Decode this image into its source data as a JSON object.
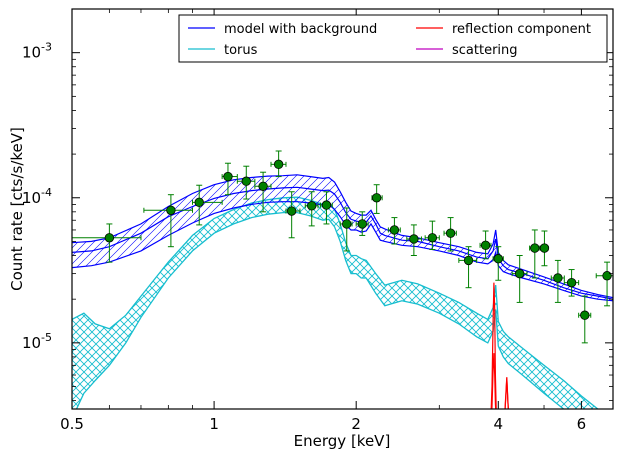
{
  "chart_data": {
    "type": "line",
    "xlabel": "Energy [keV]",
    "ylabel": "Count rate [cts/s/keV]",
    "xscale": "log",
    "yscale": "log",
    "xlim": [
      0.5,
      7.0
    ],
    "ylim": [
      3.5e-06,
      0.002
    ],
    "grid": false,
    "legend_position": "top-right",
    "x_ticks": [
      {
        "value": 0.5,
        "label": "0.5"
      },
      {
        "value": 1,
        "label": "1"
      },
      {
        "value": 2,
        "label": "2"
      },
      {
        "value": 4,
        "label": "4"
      },
      {
        "value": 6,
        "label": "6"
      }
    ],
    "y_ticks": [
      {
        "value": 1e-05,
        "base": "10",
        "exp": "-5"
      },
      {
        "value": 0.0001,
        "base": "10",
        "exp": "-4"
      },
      {
        "value": 0.001,
        "base": "10",
        "exp": "-3"
      }
    ],
    "legend": [
      {
        "label": "model with background",
        "color": "#0000ff"
      },
      {
        "label": "torus",
        "color": "#17becf"
      },
      {
        "label": "reflection component",
        "color": "#ff0000"
      },
      {
        "label": "scattering",
        "color": "#bf00bf"
      }
    ],
    "data_points": [
      {
        "x": 0.6,
        "y": 5.3e-05,
        "xlo": 0.5,
        "xhi": 0.7,
        "ylo": 3.6e-05,
        "yhi": 6.6e-05
      },
      {
        "x": 0.81,
        "y": 8.2e-05,
        "xlo": 0.71,
        "xhi": 0.9,
        "ylo": 4.6e-05,
        "yhi": 0.000105
      },
      {
        "x": 0.93,
        "y": 9.3e-05,
        "xlo": 0.9,
        "xhi": 1.04,
        "ylo": 6.5e-05,
        "yhi": 0.000122
      },
      {
        "x": 1.07,
        "y": 0.00014,
        "xlo": 1.04,
        "xhi": 1.12,
        "ylo": 0.000105,
        "yhi": 0.000173
      },
      {
        "x": 1.17,
        "y": 0.00013,
        "xlo": 1.12,
        "xhi": 1.22,
        "ylo": 9.8e-05,
        "yhi": 0.000165
      },
      {
        "x": 1.27,
        "y": 0.00012,
        "xlo": 1.22,
        "xhi": 1.32,
        "ylo": 8e-05,
        "yhi": 0.00015
      },
      {
        "x": 1.37,
        "y": 0.00017,
        "xlo": 1.32,
        "xhi": 1.42,
        "ylo": 0.00014,
        "yhi": 0.00021
      },
      {
        "x": 1.46,
        "y": 8.1e-05,
        "xlo": 1.42,
        "xhi": 1.52,
        "ylo": 5.3e-05,
        "yhi": 0.00011
      },
      {
        "x": 1.61,
        "y": 8.8e-05,
        "xlo": 1.56,
        "xhi": 1.66,
        "ylo": 6.4e-05,
        "yhi": 0.00011
      },
      {
        "x": 1.73,
        "y": 8.9e-05,
        "xlo": 1.68,
        "xhi": 1.78,
        "ylo": 6.6e-05,
        "yhi": 0.00011
      },
      {
        "x": 1.91,
        "y": 6.6e-05,
        "xlo": 1.85,
        "xhi": 1.96,
        "ylo": 4.3e-05,
        "yhi": 8.5e-05
      },
      {
        "x": 2.06,
        "y": 6.6e-05,
        "xlo": 2.0,
        "xhi": 2.12,
        "ylo": 5.5e-05,
        "yhi": 8e-05
      },
      {
        "x": 2.21,
        "y": 0.0001,
        "xlo": 2.16,
        "xhi": 2.27,
        "ylo": 7.8e-05,
        "yhi": 0.000123
      },
      {
        "x": 2.41,
        "y": 6e-05,
        "xlo": 2.34,
        "xhi": 2.48,
        "ylo": 4.8e-05,
        "yhi": 7.3e-05
      },
      {
        "x": 2.65,
        "y": 5.2e-05,
        "xlo": 2.56,
        "xhi": 2.75,
        "ylo": 4e-05,
        "yhi": 6.5e-05
      },
      {
        "x": 2.9,
        "y": 5.3e-05,
        "xlo": 2.8,
        "xhi": 3.0,
        "ylo": 4.4e-05,
        "yhi": 6.9e-05
      },
      {
        "x": 3.17,
        "y": 5.7e-05,
        "xlo": 3.07,
        "xhi": 3.26,
        "ylo": 4.3e-05,
        "yhi": 7.3e-05
      },
      {
        "x": 3.46,
        "y": 3.7e-05,
        "xlo": 3.3,
        "xhi": 3.6,
        "ylo": 2.4e-05,
        "yhi": 4.6e-05
      },
      {
        "x": 3.76,
        "y": 4.7e-05,
        "xlo": 3.66,
        "xhi": 3.86,
        "ylo": 3.8e-05,
        "yhi": 5.9e-05
      },
      {
        "x": 4.0,
        "y": 3.8e-05,
        "xlo": 3.9,
        "xhi": 4.1,
        "ylo": 2.7e-05,
        "yhi": 4.6e-05
      },
      {
        "x": 4.44,
        "y": 3e-05,
        "xlo": 4.28,
        "xhi": 4.6,
        "ylo": 1.9e-05,
        "yhi": 4e-05
      },
      {
        "x": 4.78,
        "y": 4.5e-05,
        "xlo": 4.66,
        "xhi": 4.9,
        "ylo": 2.8e-05,
        "yhi": 6e-05
      },
      {
        "x": 5.01,
        "y": 4.5e-05,
        "xlo": 4.92,
        "xhi": 5.1,
        "ylo": 3.4e-05,
        "yhi": 5.9e-05
      },
      {
        "x": 5.35,
        "y": 2.8e-05,
        "xlo": 5.18,
        "xhi": 5.52,
        "ylo": 1.9e-05,
        "yhi": 3.7e-05
      },
      {
        "x": 5.72,
        "y": 2.6e-05,
        "xlo": 5.52,
        "xhi": 5.92,
        "ylo": 2.1e-05,
        "yhi": 3.2e-05
      },
      {
        "x": 6.1,
        "y": 1.55e-05,
        "xlo": 5.92,
        "xhi": 6.28,
        "ylo": 1e-05,
        "yhi": 2.1e-05
      },
      {
        "x": 6.8,
        "y": 2.9e-05,
        "xlo": 6.45,
        "xhi": 7.0,
        "ylo": 1.8e-05,
        "yhi": 3.6e-05
      }
    ],
    "series": [
      {
        "name": "model with background",
        "color": "#0000ff",
        "x": [
          0.5,
          0.55,
          0.6,
          0.7,
          0.8,
          0.9,
          1.0,
          1.1,
          1.2,
          1.3,
          1.4,
          1.5,
          1.6,
          1.7,
          1.75,
          1.8,
          1.85,
          1.9,
          1.95,
          2.0,
          2.05,
          2.1,
          2.15,
          2.2,
          2.25,
          2.3,
          2.5,
          2.7,
          3.0,
          3.3,
          3.6,
          3.8,
          3.9,
          3.95,
          4.0,
          4.1,
          4.2,
          4.5,
          5.0,
          5.5,
          6.0,
          6.5,
          7.0
        ],
        "low": [
          3.3e-05,
          3.4e-05,
          3.6e-05,
          4.3e-05,
          5.5e-05,
          6.7e-05,
          7.8e-05,
          8.5e-05,
          9e-05,
          9.3e-05,
          9.4e-05,
          9.4e-05,
          9.2e-05,
          8.9e-05,
          9e-05,
          8.3e-05,
          7.4e-05,
          6.5e-05,
          6e-05,
          6e-05,
          5.8e-05,
          5.9e-05,
          6.6e-05,
          5.8e-05,
          5.1e-05,
          5e-05,
          4.7e-05,
          4.6e-05,
          4.3e-05,
          4e-05,
          3.6e-05,
          3.5e-05,
          3.7e-05,
          4.2e-05,
          3.4e-05,
          3.1e-05,
          3e-05,
          2.8e-05,
          2.55e-05,
          2.3e-05,
          2.1e-05,
          2e-05,
          1.95e-05
        ],
        "mid": [
          4.2e-05,
          4.3e-05,
          4.6e-05,
          5.7e-05,
          7.4e-05,
          8.7e-05,
          9.9e-05,
          0.000107,
          0.000112,
          0.000115,
          0.000117,
          0.000118,
          0.000115,
          0.000112,
          0.000113,
          0.000106,
          9.3e-05,
          7.9e-05,
          7.1e-05,
          6.9e-05,
          6.8e-05,
          6.8e-05,
          7.5e-05,
          6.6e-05,
          5.7e-05,
          5.5e-05,
          5.1e-05,
          5e-05,
          4.6e-05,
          4.3e-05,
          3.9e-05,
          3.8e-05,
          4.3e-05,
          5.2e-05,
          3.8e-05,
          3.4e-05,
          3.2e-05,
          3e-05,
          2.7e-05,
          2.4e-05,
          2.2e-05,
          2.1e-05,
          2e-05
        ],
        "high": [
          4.9e-05,
          5e-05,
          5.3e-05,
          6.6e-05,
          8.7e-05,
          0.000107,
          0.000123,
          0.000133,
          0.000138,
          0.000141,
          0.000142,
          0.000144,
          0.00014,
          0.000136,
          0.000138,
          0.000128,
          0.00011,
          9.3e-05,
          8.1e-05,
          7.8e-05,
          7.6e-05,
          7.6e-05,
          8.2e-05,
          7.1e-05,
          6.3e-05,
          6.1e-05,
          5.5e-05,
          5.3e-05,
          4.9e-05,
          4.6e-05,
          4.2e-05,
          4.1e-05,
          4.8e-05,
          6e-05,
          4.2e-05,
          3.7e-05,
          3.45e-05,
          3.2e-05,
          2.85e-05,
          2.55e-05,
          2.3e-05,
          2.15e-05,
          2.05e-05
        ]
      },
      {
        "name": "torus",
        "color": "#17becf",
        "x": [
          0.5,
          0.53,
          0.56,
          0.6,
          0.65,
          0.7,
          0.8,
          0.9,
          1.0,
          1.1,
          1.2,
          1.3,
          1.4,
          1.5,
          1.6,
          1.7,
          1.75,
          1.8,
          1.85,
          1.9,
          1.95,
          2.0,
          2.05,
          2.1,
          2.2,
          2.3,
          2.5,
          2.7,
          3.0,
          3.3,
          3.6,
          3.8,
          3.9,
          3.95,
          4.0,
          4.1,
          4.2,
          4.5,
          5.0,
          5.5,
          6.0,
          6.5,
          7.0
        ],
        "low": [
          3e-06,
          4.5e-06,
          5.5e-06,
          7e-06,
          1e-05,
          1.5e-05,
          2.8e-05,
          4.3e-05,
          5.7e-05,
          6.6e-05,
          7.3e-05,
          7.7e-05,
          7.9e-05,
          7.9e-05,
          7.5e-05,
          7e-05,
          7.1e-05,
          6.3e-05,
          5e-05,
          3.7e-05,
          3e-05,
          3e-05,
          2.8e-05,
          2.8e-05,
          2.2e-05,
          1.8e-05,
          1.95e-05,
          1.85e-05,
          1.6e-05,
          1.35e-05,
          1.1e-05,
          1e-05,
          1.2e-05,
          1.7e-05,
          9.5e-06,
          8e-06,
          7.2e-06,
          6e-06,
          4.5e-06,
          3.5e-06,
          2.8e-06,
          2.2e-06,
          1.8e-06
        ],
        "high": [
          1.45e-05,
          1.6e-05,
          1.35e-05,
          1.25e-05,
          1.55e-05,
          2.1e-05,
          3.6e-05,
          5.5e-05,
          7.2e-05,
          8.3e-05,
          9.2e-05,
          9.7e-05,
          0.0001,
          0.000101,
          9.6e-05,
          9e-05,
          9.2e-05,
          8.3e-05,
          6.6e-05,
          4.9e-05,
          4e-05,
          4e-05,
          3.8e-05,
          3.7e-05,
          3e-05,
          2.5e-05,
          2.7e-05,
          2.55e-05,
          2.2e-05,
          1.9e-05,
          1.6e-05,
          1.45e-05,
          1.75e-05,
          2.5e-05,
          1.4e-05,
          1.2e-05,
          1.1e-05,
          9.2e-06,
          7e-06,
          5.5e-06,
          4.3e-06,
          3.5e-06,
          2.9e-06
        ]
      },
      {
        "name": "reflection component",
        "color": "#ff0000",
        "x": [
          3.86,
          3.88,
          3.9,
          3.915,
          3.93,
          3.945,
          3.96,
          3.98,
          4.0,
          4.02,
          4.06,
          4.1,
          4.13,
          4.15,
          4.17,
          4.19,
          4.21,
          4.25
        ],
        "low": [
          3e-06,
          3.6e-06,
          6.5e-06,
          8.5e-06,
          6e-06,
          3.8e-06,
          3e-06,
          2.8e-06,
          2.7e-06,
          2.6e-06,
          2.6e-06,
          2.7e-06,
          3.2e-06,
          4.2e-06,
          5.7e-06,
          4e-06,
          3e-06,
          2.6e-06
        ],
        "high": [
          3.2e-06,
          5e-06,
          1.4e-05,
          2.6e-05,
          1.7e-05,
          6e-06,
          3.5e-06,
          3e-06,
          2.8e-06,
          2.7e-06,
          2.7e-06,
          2.8e-06,
          3.3e-06,
          4.4e-06,
          5.8e-06,
          4.1e-06,
          3.1e-06,
          2.7e-06
        ]
      },
      {
        "name": "scattering",
        "color": "#bf00bf",
        "x": [],
        "values": []
      }
    ]
  }
}
